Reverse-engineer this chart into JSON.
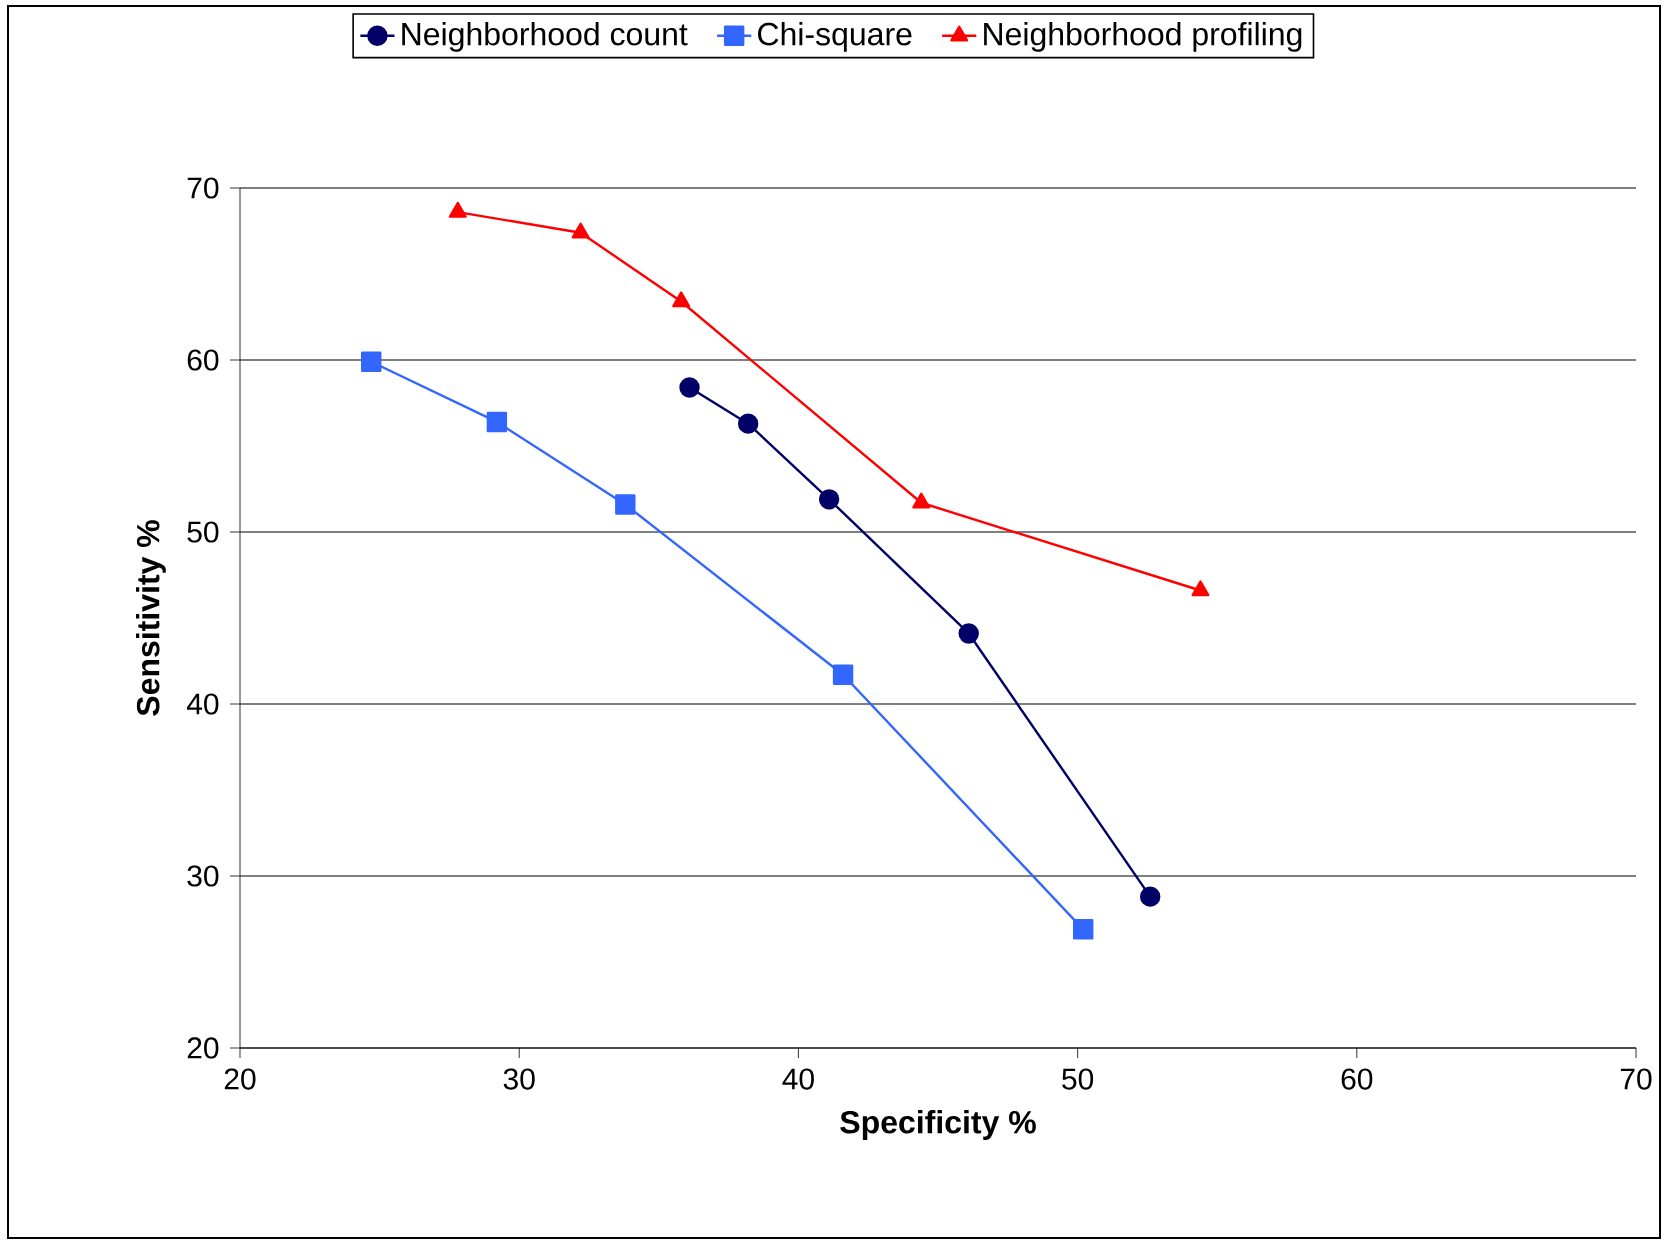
{
  "chart_data": {
    "type": "line",
    "xlabel": "Specificity %",
    "ylabel": "Sensitivity %",
    "xlim": [
      20,
      70
    ],
    "xticks": [
      20,
      30,
      40,
      50,
      60,
      70
    ],
    "ylim": [
      20,
      70
    ],
    "yticks": [
      20,
      30,
      40,
      50,
      60,
      70
    ],
    "grid": "y",
    "legend": "top",
    "line_style": "solid",
    "series": [
      {
        "name": "Neighborhood count",
        "color": "#000066",
        "marker": "circle",
        "x": [
          36.1,
          38.2,
          41.1,
          46.1,
          52.6
        ],
        "values": [
          58.4,
          56.3,
          51.9,
          44.1,
          28.8
        ]
      },
      {
        "name": "Chi-square",
        "color": "#3366ff",
        "marker": "square",
        "x": [
          24.7,
          29.2,
          33.8,
          41.6,
          50.2
        ],
        "values": [
          59.9,
          56.4,
          51.6,
          41.7,
          26.9
        ]
      },
      {
        "name": "Neighborhood profiling",
        "color": "#ff0000",
        "marker": "triangle",
        "x": [
          27.8,
          32.2,
          35.8,
          44.4,
          54.4
        ],
        "values": [
          68.6,
          67.4,
          63.4,
          51.7,
          46.6
        ]
      }
    ]
  }
}
